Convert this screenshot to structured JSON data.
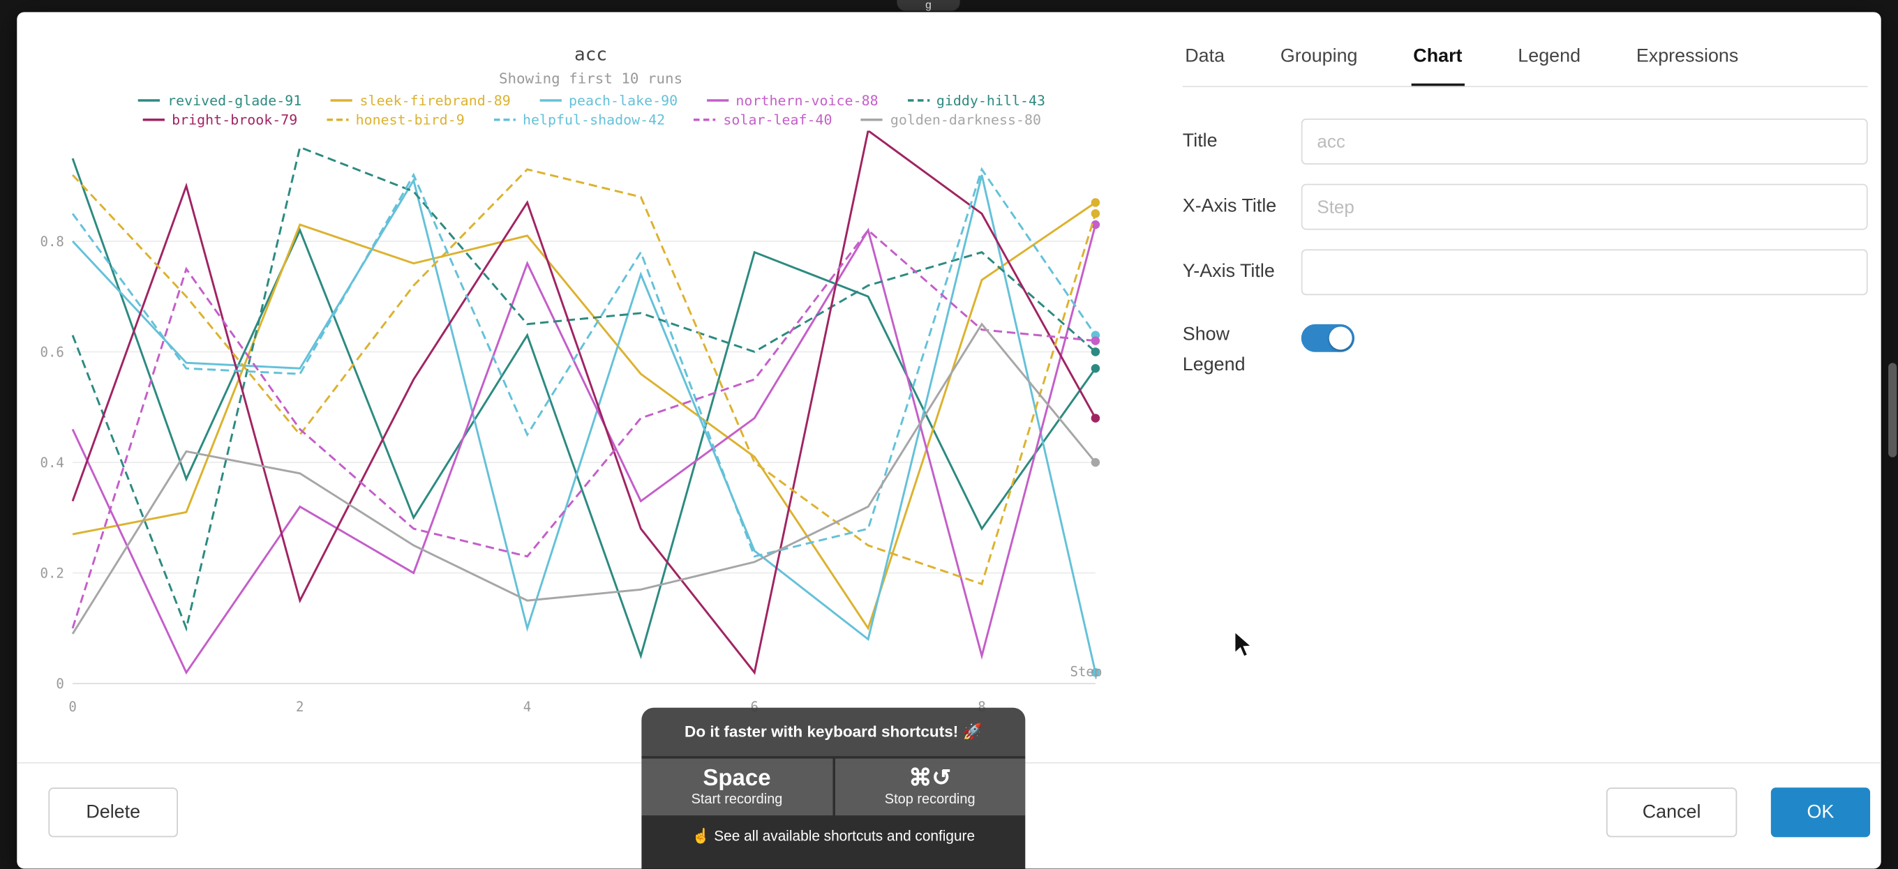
{
  "window": {
    "notch_text": "g"
  },
  "chart": {
    "title": "acc",
    "subtitle": "Showing first 10 runs",
    "x_axis_title": "Step"
  },
  "chart_data": {
    "type": "line",
    "title": "acc",
    "subtitle": "Showing first 10 runs",
    "xlabel": "Step",
    "ylabel": "",
    "x": [
      0,
      1,
      2,
      3,
      4,
      5,
      6,
      7,
      8,
      9
    ],
    "xticks": [
      0,
      2,
      4,
      6,
      8
    ],
    "yticks": [
      0,
      0.2,
      0.4,
      0.6,
      0.8
    ],
    "ylim": [
      0,
      1.0
    ],
    "grid": true,
    "legend_position": "top",
    "series": [
      {
        "name": "revived-glade-91",
        "color": "#2c8a80",
        "dash": false,
        "values": [
          0.95,
          0.37,
          0.82,
          0.3,
          0.63,
          0.05,
          0.78,
          0.7,
          0.28,
          0.57
        ]
      },
      {
        "name": "sleek-firebrand-89",
        "color": "#dcb22e",
        "dash": false,
        "values": [
          0.27,
          0.31,
          0.83,
          0.76,
          0.81,
          0.56,
          0.41,
          0.1,
          0.73,
          0.87
        ]
      },
      {
        "name": "peach-lake-90",
        "color": "#64c1d9",
        "dash": false,
        "values": [
          0.8,
          0.58,
          0.57,
          0.91,
          0.1,
          0.74,
          0.24,
          0.08,
          0.92,
          0.02
        ]
      },
      {
        "name": "northern-voice-88",
        "color": "#c45ec9",
        "dash": false,
        "values": [
          0.46,
          0.02,
          0.32,
          0.2,
          0.76,
          0.33,
          0.48,
          0.82,
          0.05,
          0.83
        ]
      },
      {
        "name": "giddy-hill-43",
        "color": "#2c8a80",
        "dash": true,
        "values": [
          0.63,
          0.1,
          0.97,
          0.89,
          0.65,
          0.67,
          0.6,
          0.72,
          0.78,
          0.6
        ]
      },
      {
        "name": "bright-brook-79",
        "color": "#a02462",
        "dash": false,
        "values": [
          0.33,
          0.9,
          0.15,
          0.55,
          0.87,
          0.28,
          0.02,
          1.0,
          0.85,
          0.48
        ]
      },
      {
        "name": "honest-bird-9",
        "color": "#dcb22e",
        "dash": true,
        "values": [
          0.92,
          0.7,
          0.45,
          0.72,
          0.93,
          0.88,
          0.4,
          0.25,
          0.18,
          0.85
        ]
      },
      {
        "name": "helpful-shadow-42",
        "color": "#64c1d9",
        "dash": true,
        "values": [
          0.85,
          0.57,
          0.56,
          0.92,
          0.45,
          0.78,
          0.23,
          0.28,
          0.93,
          0.63
        ]
      },
      {
        "name": "solar-leaf-40",
        "color": "#c45ec9",
        "dash": true,
        "values": [
          0.1,
          0.75,
          0.46,
          0.28,
          0.23,
          0.48,
          0.55,
          0.82,
          0.64,
          0.62
        ]
      },
      {
        "name": "golden-darkness-80",
        "color": "#a6a6a6",
        "dash": false,
        "values": [
          0.09,
          0.42,
          0.38,
          0.25,
          0.15,
          0.17,
          0.22,
          0.32,
          0.65,
          0.4
        ]
      }
    ]
  },
  "panel": {
    "tabs": [
      {
        "label": "Data",
        "active": false
      },
      {
        "label": "Grouping",
        "active": false
      },
      {
        "label": "Chart",
        "active": true
      },
      {
        "label": "Legend",
        "active": false
      },
      {
        "label": "Expressions",
        "active": false
      }
    ],
    "fields": [
      {
        "name": "title",
        "label": "Title",
        "placeholder": "acc",
        "value": ""
      },
      {
        "name": "x-axis-title",
        "label": "X-Axis Title",
        "placeholder": "Step",
        "value": ""
      },
      {
        "name": "y-axis-title",
        "label": "Y-Axis Title",
        "placeholder": "",
        "value": ""
      }
    ],
    "show_legend": {
      "label": "Show Legend",
      "state": "on"
    }
  },
  "footer": {
    "delete": "Delete",
    "cancel": "Cancel",
    "ok": "OK"
  },
  "shortcuts_overlay": {
    "title": "Do it faster with keyboard shortcuts! 🚀",
    "keys": [
      {
        "key": "Space",
        "action": "Start recording"
      },
      {
        "key": "⌘↺",
        "action": "Stop recording"
      }
    ],
    "footer_note": "☝️ See all available shortcuts and configure"
  },
  "colors": {
    "accent_blue": "#2088c8",
    "toggle_on": "#2e86c8"
  }
}
